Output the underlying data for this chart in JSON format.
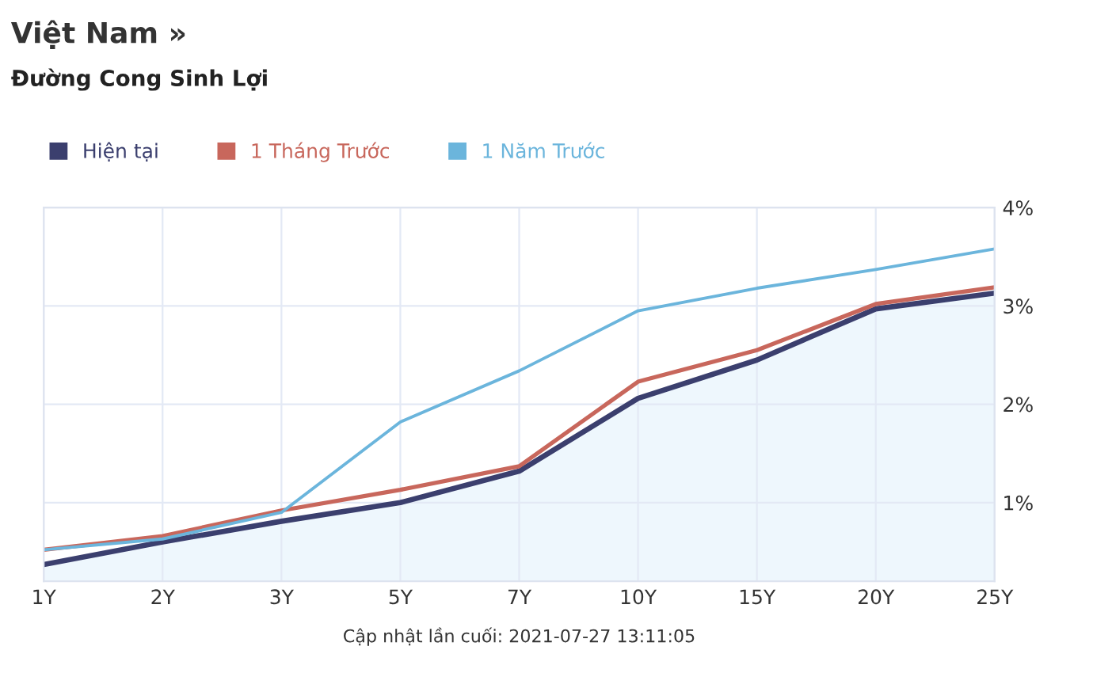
{
  "chart_data": {
    "type": "line",
    "title": "Việt Nam »",
    "subtitle": "Đường Cong Sinh Lợi",
    "categories": [
      "1Y",
      "2Y",
      "3Y",
      "5Y",
      "7Y",
      "10Y",
      "15Y",
      "20Y",
      "25Y"
    ],
    "series": [
      {
        "name": "Hiện tại",
        "color": "#3b3f6e",
        "type": "area",
        "values": [
          0.37,
          0.6,
          0.81,
          1.0,
          1.32,
          2.06,
          2.45,
          2.97,
          3.13
        ]
      },
      {
        "name": "1 Tháng Trước",
        "color": "#c8675c",
        "values": [
          0.52,
          0.66,
          0.92,
          1.13,
          1.37,
          2.23,
          2.55,
          3.02,
          3.19
        ]
      },
      {
        "name": "1 Năm Trước",
        "color": "#6bb5dc",
        "values": [
          0.52,
          0.63,
          0.9,
          1.82,
          2.34,
          2.95,
          3.18,
          3.37,
          3.58
        ]
      }
    ],
    "ylim": [
      0.2,
      4
    ],
    "yticks": [
      {
        "value": 1,
        "label": "1%"
      },
      {
        "value": 2,
        "label": "2%"
      },
      {
        "value": 3,
        "label": "3%"
      },
      {
        "value": 4,
        "label": "4%"
      }
    ],
    "grid": true,
    "legend": "top left",
    "annotations": [
      "Cập nhật lần cuối: 2021-07-27 13:11:05"
    ]
  }
}
